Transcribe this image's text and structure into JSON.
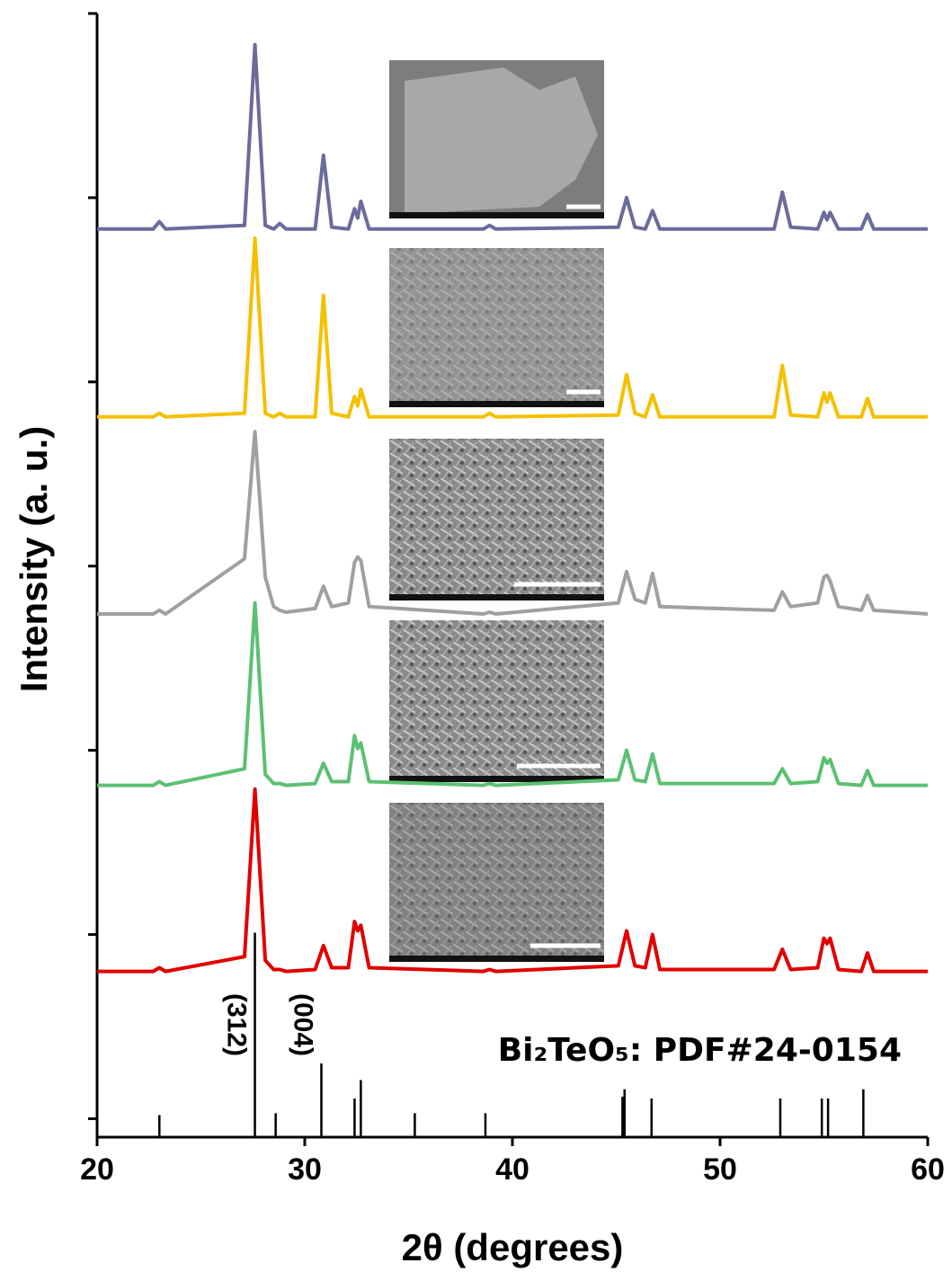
{
  "chart_data": [
    {
      "type": "line",
      "x_label": "2θ (degrees)",
      "y_label": "Intensity (a. u.)",
      "xlim": [
        20,
        60
      ],
      "xticks": [
        20,
        30,
        40,
        50,
        60
      ],
      "ylim": [
        0,
        6.1
      ],
      "yticks": [
        0.1,
        1.1,
        2.1,
        3.1,
        4.1,
        5.1,
        6.1
      ],
      "x": [
        20,
        22.7,
        23.0,
        23.3,
        27.1,
        27.6,
        28.1,
        28.5,
        28.8,
        29.1,
        30.5,
        30.9,
        31.3,
        32.1,
        32.4,
        32.55,
        32.7,
        33.1,
        38.6,
        38.9,
        39.2,
        45.1,
        45.5,
        45.9,
        46.4,
        46.75,
        47.1,
        52.6,
        53.0,
        53.4,
        54.7,
        55.0,
        55.15,
        55.3,
        55.7,
        56.8,
        57.1,
        57.4,
        60
      ],
      "series": [
        {
          "color": "#6b6b9c",
          "values": [
            4.93,
            4.93,
            4.97,
            4.93,
            4.95,
            5.93,
            4.95,
            4.93,
            4.96,
            4.93,
            4.93,
            5.33,
            4.94,
            4.93,
            5.04,
            4.99,
            5.08,
            4.93,
            4.93,
            4.95,
            4.93,
            4.94,
            5.1,
            4.94,
            4.93,
            5.03,
            4.93,
            4.93,
            5.13,
            4.94,
            4.93,
            5.02,
            4.98,
            5.02,
            4.93,
            4.93,
            5.01,
            4.93,
            4.93
          ]
        },
        {
          "color": "#f5c000",
          "values": [
            3.91,
            3.91,
            3.93,
            3.91,
            3.93,
            4.88,
            3.93,
            3.91,
            3.93,
            3.91,
            3.91,
            4.57,
            3.93,
            3.91,
            4.02,
            3.97,
            4.06,
            3.91,
            3.91,
            3.93,
            3.91,
            3.92,
            4.14,
            3.93,
            3.91,
            4.03,
            3.91,
            3.91,
            4.19,
            3.92,
            3.91,
            4.04,
            3.99,
            4.04,
            3.91,
            3.91,
            4.01,
            3.91,
            3.91
          ]
        },
        {
          "color": "#a0a0a0",
          "values": [
            2.84,
            2.84,
            2.86,
            2.84,
            3.14,
            3.83,
            3.04,
            2.88,
            2.86,
            2.85,
            2.87,
            2.99,
            2.88,
            2.9,
            3.12,
            3.15,
            3.13,
            2.88,
            2.84,
            2.85,
            2.84,
            2.9,
            3.07,
            2.92,
            2.9,
            3.06,
            2.88,
            2.86,
            2.96,
            2.88,
            2.9,
            3.04,
            3.05,
            3.02,
            2.88,
            2.86,
            2.94,
            2.86,
            2.84
          ]
        },
        {
          "color": "#5cc072",
          "values": [
            1.91,
            1.91,
            1.93,
            1.91,
            2.0,
            2.9,
            1.97,
            1.92,
            1.92,
            1.91,
            1.92,
            2.03,
            1.93,
            1.93,
            2.18,
            2.11,
            2.14,
            1.93,
            1.91,
            1.92,
            1.91,
            1.94,
            2.1,
            1.94,
            1.93,
            2.08,
            1.92,
            1.92,
            2.0,
            1.92,
            1.93,
            2.06,
            2.03,
            2.05,
            1.92,
            1.91,
            1.99,
            1.91,
            1.91
          ]
        },
        {
          "color": "#e00000",
          "values": [
            0.9,
            0.9,
            0.92,
            0.9,
            0.98,
            1.89,
            0.96,
            0.91,
            0.91,
            0.9,
            0.91,
            1.04,
            0.92,
            0.92,
            1.17,
            1.12,
            1.15,
            0.92,
            0.9,
            0.91,
            0.9,
            0.93,
            1.12,
            0.93,
            0.92,
            1.1,
            0.91,
            0.91,
            1.02,
            0.91,
            0.92,
            1.08,
            1.05,
            1.08,
            0.91,
            0.9,
            1.0,
            0.9,
            0.9
          ]
        }
      ]
    },
    {
      "type": "stem",
      "label": "Bi₂TeO₅: PDF#24-0154",
      "color": "#000000",
      "x": [
        23.0,
        27.6,
        28.6,
        30.8,
        32.4,
        32.7,
        35.3,
        38.7,
        45.3,
        45.4,
        46.7,
        52.9,
        54.9,
        55.2,
        56.9
      ],
      "values": [
        0.12,
        1.11,
        0.13,
        0.4,
        0.21,
        0.31,
        0.13,
        0.13,
        0.22,
        0.26,
        0.21,
        0.21,
        0.21,
        0.21,
        0.26
      ],
      "annotations": [
        {
          "text": "(312)",
          "x": 27.6
        },
        {
          "text": "(004)",
          "x": 30.8
        }
      ]
    }
  ]
}
